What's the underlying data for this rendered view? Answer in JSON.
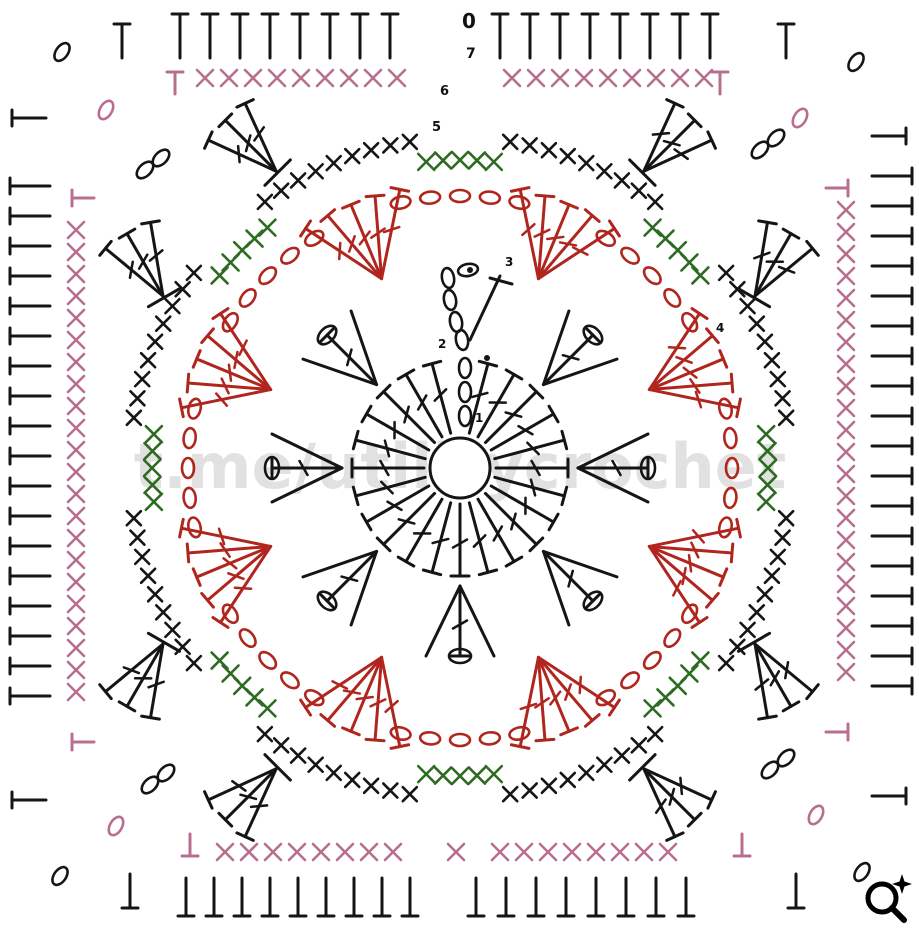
{
  "pattern": {
    "round_labels": [
      "0",
      "1",
      "2",
      "3",
      "4",
      "5",
      "6",
      "7"
    ],
    "watermark": "t.me/utilitycrochet",
    "stitch_colors": {
      "black": "#151515",
      "red": "#b0261e",
      "green": "#2e6b22",
      "pink": "#b86f8f"
    },
    "counts": {
      "center_spokes": 24,
      "red_fans": 8,
      "chain_spaces": 8,
      "side_posts": 14
    }
  },
  "ui": {
    "visual_search_icon": "magnifier-sparkle-icon"
  }
}
